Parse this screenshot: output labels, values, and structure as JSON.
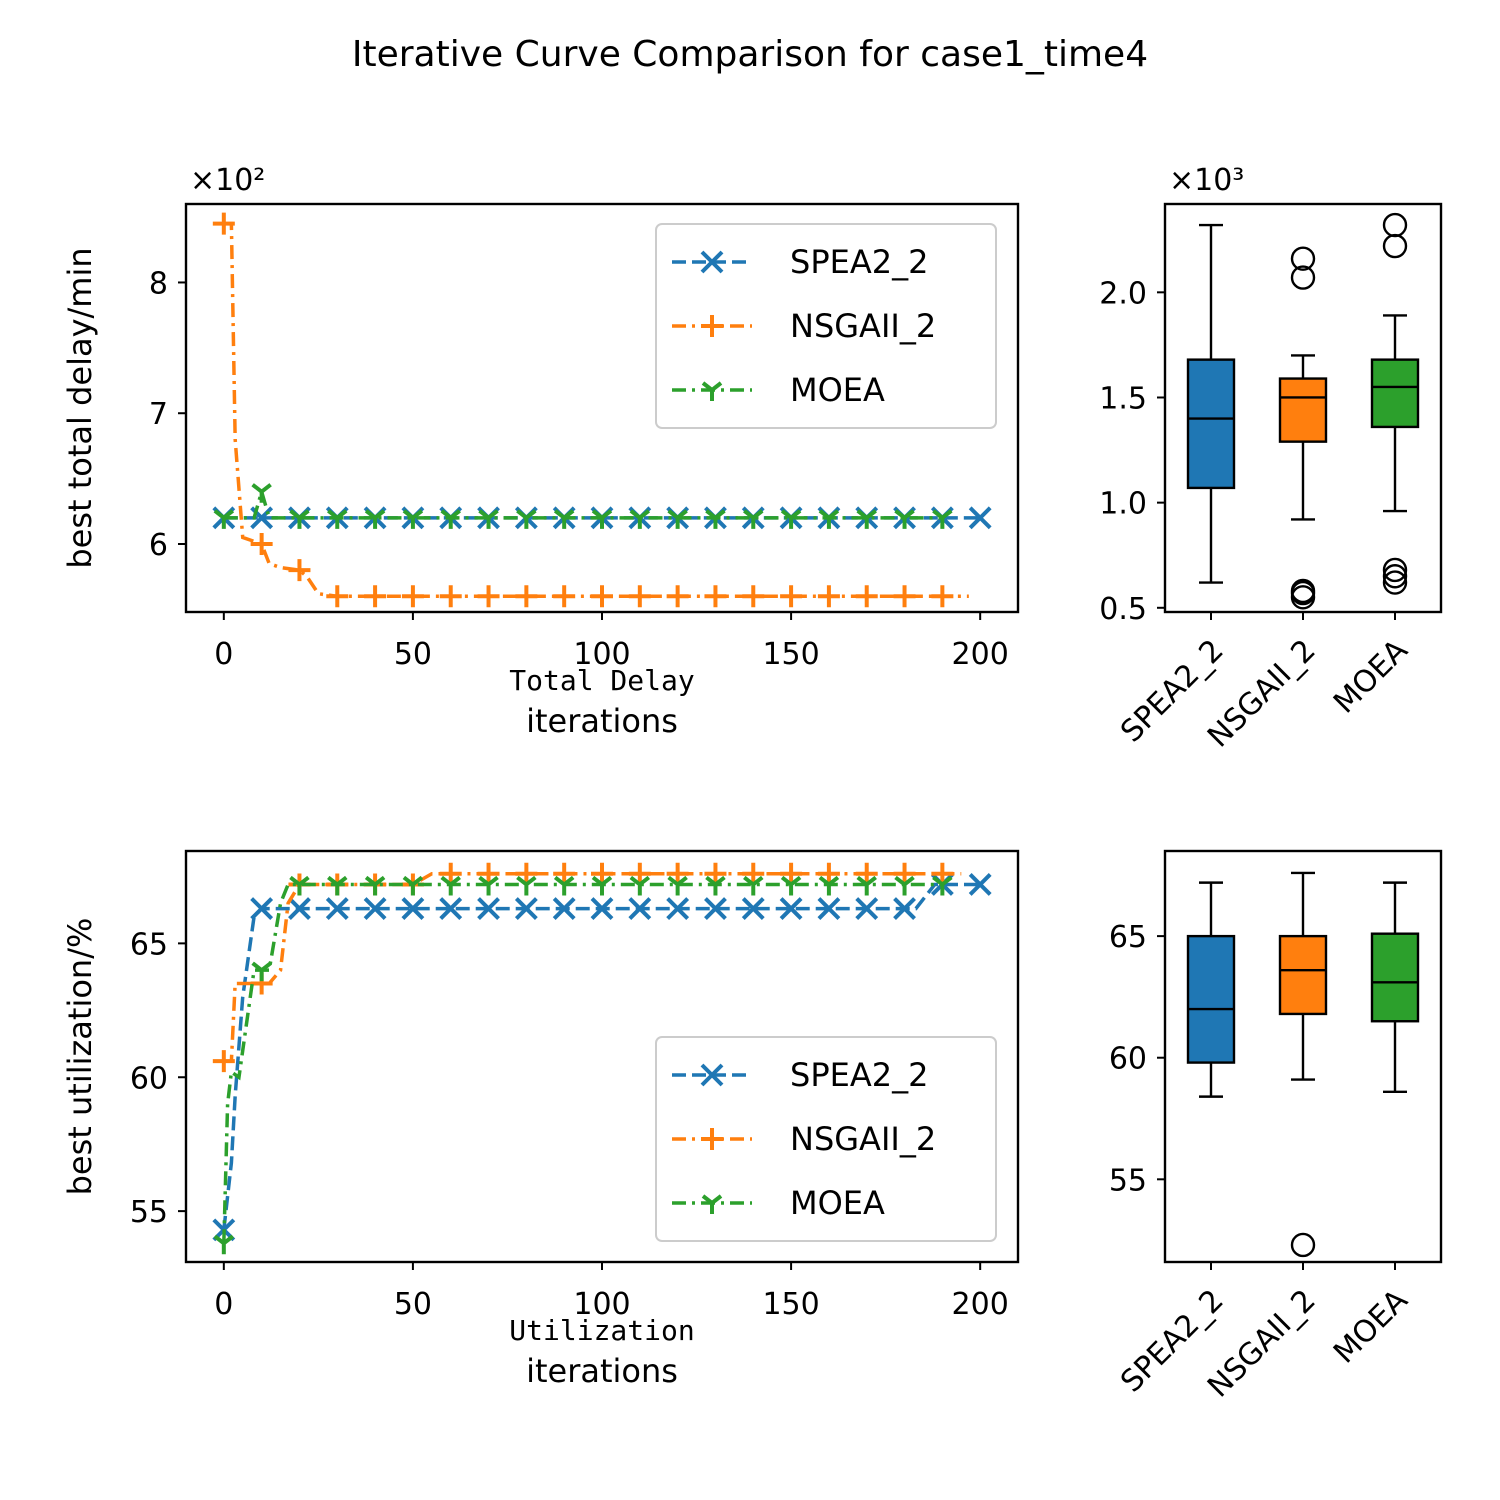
{
  "figure": {
    "title": "Iterative Curve Comparison for case1_time4"
  },
  "colors": {
    "SPEA2_2": "#1f77b4",
    "NSGAII_2": "#ff7f0e",
    "MOEA": "#2ca02c"
  },
  "chart_data": [
    {
      "type": "line",
      "panel": "total-delay-curve",
      "xlabel": "iterations",
      "sublabel": "Total Delay",
      "ylabel": "best total delay/min",
      "offset_label": "×10²",
      "xlim": [
        -10,
        210
      ],
      "ylim": [
        5.48,
        8.6
      ],
      "xticks": [
        0,
        50,
        100,
        150,
        200
      ],
      "yticks": [
        6,
        7,
        8
      ],
      "legend": "top-right",
      "grid": false,
      "series": [
        {
          "name": "SPEA2_2",
          "marker": "x",
          "linestyle": "dashed",
          "x": [
            0,
            200
          ],
          "y": [
            6.2,
            6.2
          ],
          "marker_x": [
            0,
            10,
            20,
            30,
            40,
            50,
            60,
            70,
            80,
            90,
            100,
            110,
            120,
            130,
            140,
            150,
            160,
            170,
            180,
            190,
            200
          ]
        },
        {
          "name": "NSGAII_2",
          "marker": "+",
          "linestyle": "dashdot",
          "x": [
            0,
            2,
            3,
            5,
            8,
            10,
            12,
            15,
            20,
            22,
            25,
            30,
            197
          ],
          "y": [
            8.45,
            8.45,
            6.8,
            6.05,
            6.02,
            6.0,
            5.85,
            5.82,
            5.8,
            5.75,
            5.62,
            5.6,
            5.6
          ],
          "marker_x": [
            0,
            10,
            20,
            30,
            40,
            50,
            60,
            70,
            80,
            90,
            100,
            110,
            120,
            130,
            140,
            150,
            160,
            170,
            180,
            190
          ]
        },
        {
          "name": "MOEA",
          "marker": "tri_down",
          "linestyle": "dashdot",
          "x": [
            0,
            8,
            10,
            12,
            190
          ],
          "y": [
            6.2,
            6.2,
            6.4,
            6.2,
            6.2
          ],
          "marker_x": [
            0,
            10,
            20,
            30,
            40,
            50,
            60,
            70,
            80,
            90,
            100,
            110,
            120,
            130,
            140,
            150,
            160,
            170,
            180,
            190
          ]
        }
      ]
    },
    {
      "type": "box",
      "panel": "total-delay-box",
      "offset_label": "×10³",
      "categories": [
        "SPEA2_2",
        "NSGAII_2",
        "MOEA"
      ],
      "ylim": [
        0.48,
        2.42
      ],
      "yticks": [
        0.5,
        1.0,
        1.5,
        2.0
      ],
      "ytick_labels": [
        "0.5",
        "1.0",
        "1.5",
        "2.0"
      ],
      "boxes": [
        {
          "min": 0.62,
          "q1": 1.07,
          "median": 1.4,
          "q3": 1.68,
          "max": 2.32,
          "outliers": []
        },
        {
          "min": 0.92,
          "q1": 1.29,
          "median": 1.5,
          "q3": 1.59,
          "max": 1.7,
          "outliers": [
            0.55,
            0.57,
            0.58,
            2.07,
            2.16
          ]
        },
        {
          "min": 0.96,
          "q1": 1.36,
          "median": 1.55,
          "q3": 1.68,
          "max": 1.89,
          "outliers": [
            0.62,
            0.65,
            0.68,
            2.22,
            2.32
          ]
        }
      ]
    },
    {
      "type": "line",
      "panel": "utilization-curve",
      "xlabel": "iterations",
      "sublabel": "Utilization",
      "ylabel": "best utilization/%",
      "xlim": [
        -10,
        210
      ],
      "ylim": [
        53.1,
        68.45
      ],
      "xticks": [
        0,
        50,
        100,
        150,
        200
      ],
      "yticks": [
        55,
        60,
        65
      ],
      "legend": "lower-right",
      "grid": false,
      "series": [
        {
          "name": "SPEA2_2",
          "marker": "x",
          "linestyle": "dashed",
          "x": [
            0,
            2,
            3,
            5,
            8,
            10,
            183,
            188,
            190,
            200
          ],
          "y": [
            54.3,
            56.8,
            59.3,
            63.0,
            66.0,
            66.3,
            66.3,
            67.2,
            67.2,
            67.2
          ],
          "marker_x": [
            0,
            10,
            20,
            30,
            40,
            50,
            60,
            70,
            80,
            90,
            100,
            110,
            120,
            130,
            140,
            150,
            160,
            170,
            180,
            190,
            200
          ]
        },
        {
          "name": "NSGAII_2",
          "marker": "+",
          "linestyle": "dashdot",
          "x": [
            0,
            2,
            3,
            12,
            15,
            17,
            20,
            50,
            55,
            195
          ],
          "y": [
            60.6,
            60.6,
            63.5,
            63.5,
            64.0,
            66.5,
            67.2,
            67.2,
            67.6,
            67.6
          ],
          "marker_x": [
            0,
            10,
            20,
            30,
            40,
            50,
            60,
            70,
            80,
            90,
            100,
            110,
            120,
            130,
            140,
            150,
            160,
            170,
            180,
            190
          ]
        },
        {
          "name": "MOEA",
          "marker": "tri_down",
          "linestyle": "dashdot",
          "x": [
            0,
            1,
            2,
            4,
            6,
            8,
            12,
            15,
            17,
            20,
            190
          ],
          "y": [
            53.8,
            59.0,
            60.2,
            60.0,
            62.0,
            64.0,
            64.0,
            66.5,
            67.2,
            67.2,
            67.2
          ],
          "marker_x": [
            0,
            10,
            20,
            30,
            40,
            50,
            60,
            70,
            80,
            90,
            100,
            110,
            120,
            130,
            140,
            150,
            160,
            170,
            180,
            190
          ]
        }
      ]
    },
    {
      "type": "box",
      "panel": "utilization-box",
      "categories": [
        "SPEA2_2",
        "NSGAII_2",
        "MOEA"
      ],
      "ylim": [
        51.6,
        68.5
      ],
      "yticks": [
        55,
        60,
        65
      ],
      "ytick_labels": [
        "55",
        "60",
        "65"
      ],
      "boxes": [
        {
          "min": 58.4,
          "q1": 59.8,
          "median": 62.0,
          "q3": 65.0,
          "max": 67.2,
          "outliers": []
        },
        {
          "min": 59.1,
          "q1": 61.8,
          "median": 63.6,
          "q3": 65.0,
          "max": 67.6,
          "outliers": [
            52.3
          ]
        },
        {
          "min": 58.6,
          "q1": 61.5,
          "median": 63.1,
          "q3": 65.1,
          "max": 67.2,
          "outliers": []
        }
      ]
    }
  ]
}
